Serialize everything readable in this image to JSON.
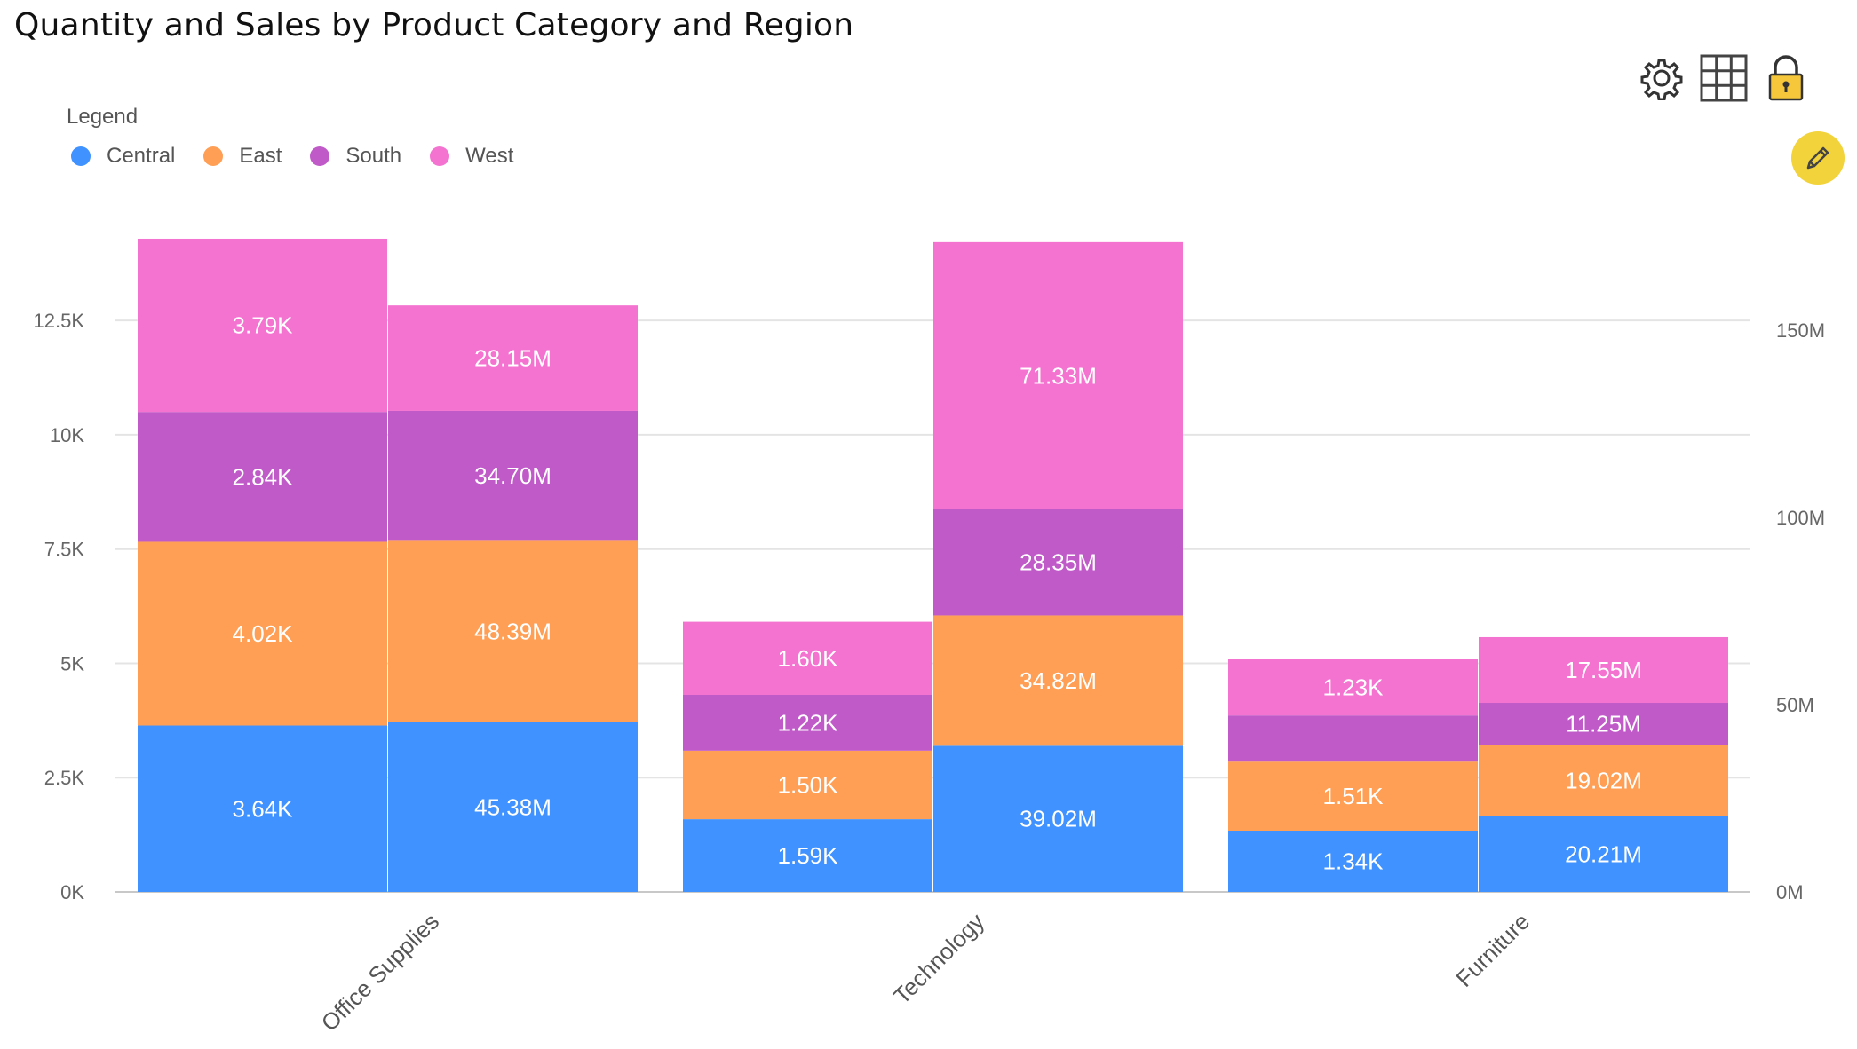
{
  "title": "Quantity and Sales by Product Category and Region",
  "legend": {
    "title": "Legend",
    "items": [
      {
        "name": "Central",
        "color": "#3f92ff"
      },
      {
        "name": "East",
        "color": "#ff9f55"
      },
      {
        "name": "South",
        "color": "#bf5ac8"
      },
      {
        "name": "West",
        "color": "#f472d0"
      }
    ]
  },
  "toolbar": {
    "icons": [
      "gear-icon",
      "grid-icon",
      "lock-icon",
      "pencil-icon"
    ]
  },
  "chart_data": {
    "type": "bar",
    "stacked": true,
    "categories": [
      "Office Supplies",
      "Technology",
      "Furniture"
    ],
    "series": [
      {
        "name": "Central",
        "quantity": [
          3640,
          1590,
          1340
        ],
        "quantity_labels": [
          "3.64K",
          "1.59K",
          "1.34K"
        ],
        "sales": [
          45.38,
          39.02,
          20.21
        ],
        "sales_labels": [
          "45.38M",
          "39.02M",
          "20.21M"
        ]
      },
      {
        "name": "East",
        "quantity": [
          4020,
          1500,
          1510
        ],
        "quantity_labels": [
          "4.02K",
          "1.50K",
          "1.51K"
        ],
        "sales": [
          48.39,
          34.82,
          19.02
        ],
        "sales_labels": [
          "48.39M",
          "34.82M",
          "19.02M"
        ]
      },
      {
        "name": "South",
        "quantity": [
          2840,
          1220,
          1010
        ],
        "quantity_labels": [
          "2.84K",
          "1.22K",
          ""
        ],
        "sales": [
          34.7,
          28.35,
          11.25
        ],
        "sales_labels": [
          "34.70M",
          "28.35M",
          "11.25M"
        ]
      },
      {
        "name": "West",
        "quantity": [
          3790,
          1600,
          1230
        ],
        "quantity_labels": [
          "3.79K",
          "1.60K",
          "1.23K"
        ],
        "sales": [
          28.15,
          71.33,
          17.55
        ],
        "sales_labels": [
          "28.15M",
          "71.33M",
          "17.55M"
        ]
      }
    ],
    "y_left": {
      "ticks": [
        0,
        2500,
        5000,
        7500,
        10000,
        12500
      ],
      "tick_labels": [
        "0K",
        "2.5K",
        "5K",
        "7.5K",
        "10K",
        "12.5K"
      ],
      "range": [
        0,
        14270
      ]
    },
    "y_right": {
      "ticks": [
        0,
        50,
        100,
        150
      ],
      "tick_labels": [
        "0M",
        "50M",
        "100M",
        "150M"
      ],
      "range": [
        0,
        174.2
      ]
    },
    "grid": true,
    "legend_position": "top-left"
  }
}
